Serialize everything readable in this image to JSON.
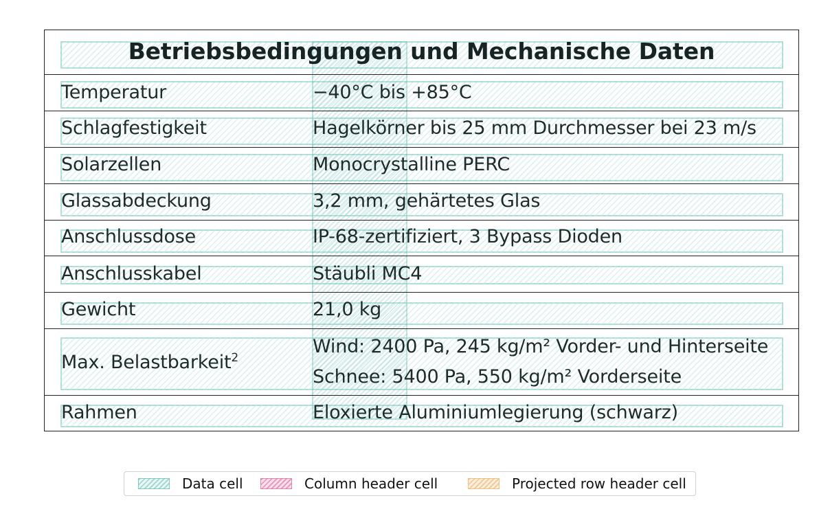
{
  "table": {
    "title": "Betriebsbedingungen und Mechanische Daten",
    "rows": [
      {
        "label": "Temperatur",
        "value": "−40°C bis +85°C"
      },
      {
        "label": "Schlagfestigkeit",
        "value": "Hagelkörner bis 25 mm Durchmesser bei 23 m/s"
      },
      {
        "label": "Solarzellen",
        "value": "Monocrystalline PERC"
      },
      {
        "label": "Glassabdeckung",
        "value": "3,2 mm, gehärtetes Glas"
      },
      {
        "label": "Anschlussdose",
        "value": "IP-68-zertifiziert, 3 Bypass Dioden"
      },
      {
        "label": "Anschlusskabel",
        "value": "Stäubli MC4"
      },
      {
        "label": "Gewicht",
        "value": "21,0 kg"
      },
      {
        "label": "Max. Belastbarkeit",
        "label_sup": "2",
        "value_line1": "Wind: 2400 Pa, 245 kg/m² Vorder- und Hinterseite",
        "value_line2": "Schnee: 5400 Pa, 550 kg/m² Vorderseite"
      },
      {
        "label": "Rahmen",
        "value": "Eloxierte Aluminiumlegierung (schwarz)"
      }
    ]
  },
  "legend": {
    "items": [
      {
        "label": "Data cell",
        "color": "#7ec8bf"
      },
      {
        "label": "Column header cell",
        "color": "#e86fa0"
      },
      {
        "label": "Projected row header cell",
        "color": "#f0b46e"
      }
    ]
  }
}
